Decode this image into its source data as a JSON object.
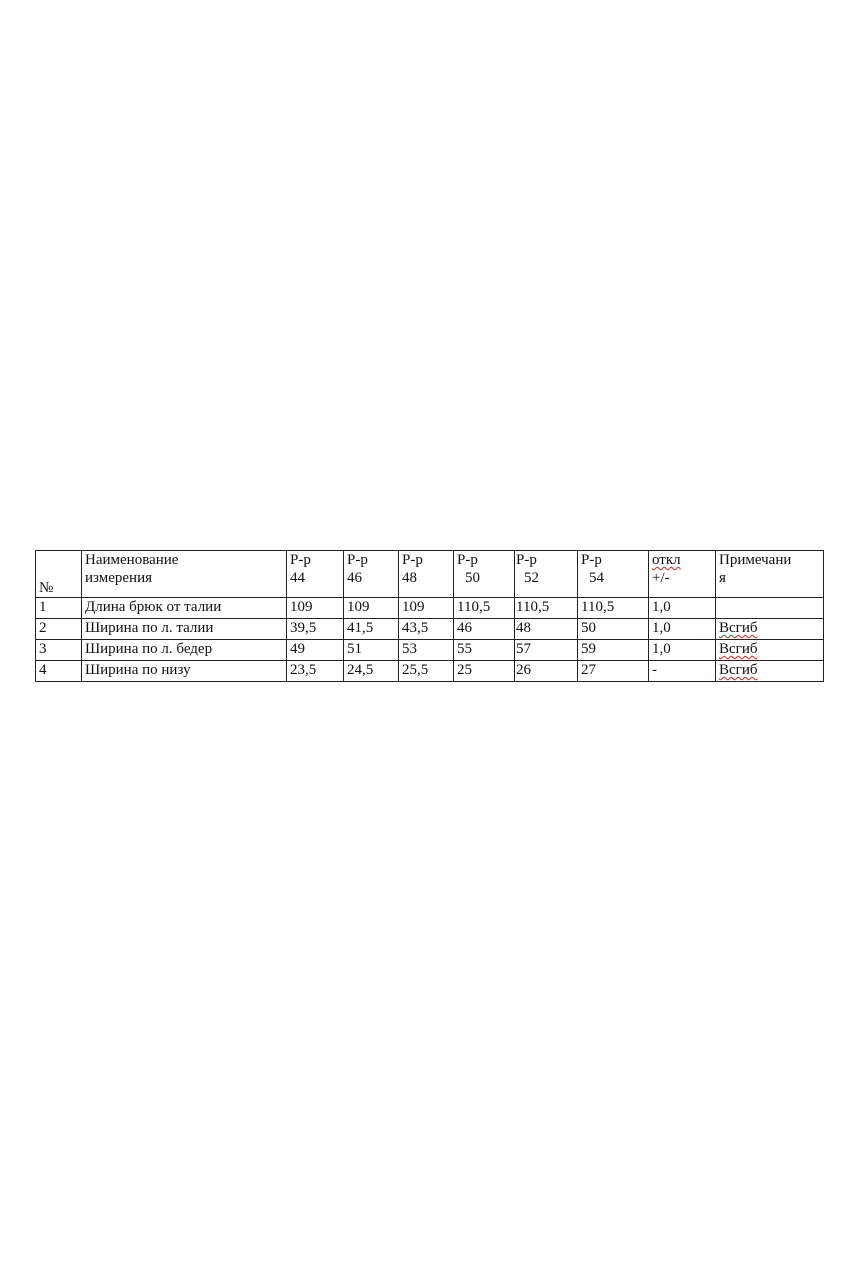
{
  "table": {
    "header": {
      "num": "№",
      "name_line1": "Наименование",
      "name_line2": "измерения",
      "sizes": [
        {
          "l1": "Р-р",
          "l2": "44"
        },
        {
          "l1": "Р-р",
          "l2": "46"
        },
        {
          "l1": "Р-р",
          "l2": "48"
        },
        {
          "l1": "Р-р",
          "l2": "50"
        },
        {
          "l1": "Р-р",
          "l2": "52"
        },
        {
          "l1": "Р-р",
          "l2": "54"
        }
      ],
      "tol_line1": "откл",
      "tol_line2": "+/-",
      "notes_line1": "Примечани",
      "notes_line2": "я"
    },
    "rows": [
      {
        "num": "1",
        "name": "Длина брюк от талии",
        "v": [
          "109",
          "109",
          "109",
          "110,5",
          "110,5",
          "110,5"
        ],
        "tol": "1,0",
        "note": ""
      },
      {
        "num": "2",
        "name": "Ширина по л.  талии",
        "v": [
          "39,5",
          "41,5",
          "43,5",
          "46",
          "48",
          "50"
        ],
        "tol": "1,0",
        "note": "Всгиб"
      },
      {
        "num": "3",
        "name": "Ширина по л. бедер",
        "v": [
          "49",
          "51",
          "53",
          "55",
          "57",
          "59"
        ],
        "tol": "1,0",
        "note": "Всгиб"
      },
      {
        "num": "4",
        "name": "Ширина по низу",
        "v": [
          "23,5",
          "24,5",
          "25,5",
          "25",
          "26",
          "27"
        ],
        "tol": "-",
        "note": "Всгиб"
      }
    ]
  }
}
